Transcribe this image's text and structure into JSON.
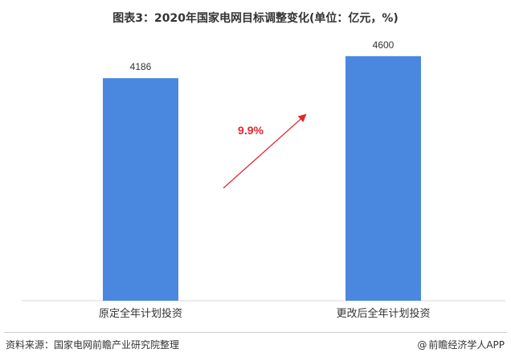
{
  "title": "图表3：2020年国家电网目标调整变化(单位：亿元，%)",
  "chart_data": {
    "type": "bar",
    "categories": [
      "原定全年计划投资",
      "更改后全年计划投资"
    ],
    "values": [
      4186,
      4600
    ],
    "ylim": [
      0,
      4900
    ],
    "grid": false,
    "bar_color": "#4a88e0",
    "annotation": {
      "text": "9.9%",
      "color": "#e0282d"
    }
  },
  "footer": {
    "source": "资料来源：国家电网前瞻产业研究院整理",
    "brand": "前瞻经济学人APP",
    "brand_icon": "at-sign-icon"
  }
}
